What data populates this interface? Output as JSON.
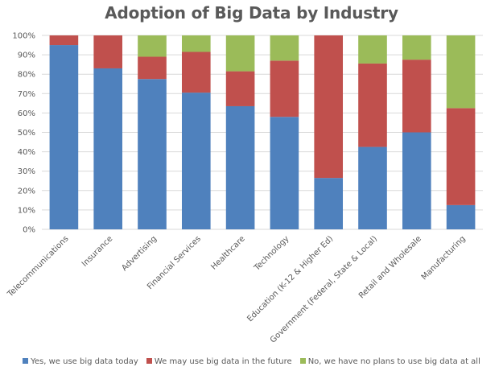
{
  "chart_data": {
    "type": "bar",
    "stacked": true,
    "title": "Adoption of Big Data by Industry",
    "xlabel": "",
    "ylabel": "",
    "ylim": [
      0,
      100
    ],
    "yticks": [
      "0%",
      "10%",
      "20%",
      "30%",
      "40%",
      "50%",
      "60%",
      "70%",
      "80%",
      "90%",
      "100%"
    ],
    "grid": true,
    "legend_position": "bottom",
    "categories": [
      "Telecommunications",
      "Insurance",
      "Advertising",
      "Financial Services",
      "Healthcare",
      "Technology",
      "Education (K-12 & Higher Ed)",
      "Government (Federal, State & Local)",
      "Retail and Wholesale",
      "Manufacturing"
    ],
    "series": [
      {
        "name": "Yes, we use big data today",
        "color": "#4F81BD",
        "values": [
          95,
          83,
          77.5,
          70.5,
          63.5,
          58,
          26.5,
          42.5,
          50,
          12.5
        ]
      },
      {
        "name": "We may use big data in the future",
        "color": "#C0504D",
        "values": [
          5,
          17,
          11.5,
          21,
          18,
          29,
          73.5,
          43,
          37.5,
          50
        ]
      },
      {
        "name": "No, we have no plans to use big data at all",
        "color": "#9BBB59",
        "values": [
          0,
          0,
          11,
          8.5,
          18.5,
          13,
          0,
          14.5,
          12.5,
          37.5
        ]
      }
    ]
  }
}
